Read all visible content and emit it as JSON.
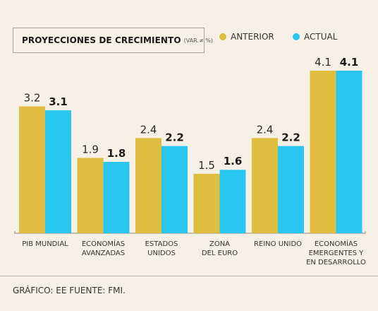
{
  "title": "PROYECCIONES DE CRECIMIENTO",
  "subtitle": "(VAR.≠ %)",
  "legend": {
    "prev": "ANTERIOR",
    "curr": "ACTUAL"
  },
  "source": "GRÁFICO: EE FUENTE: FMI.",
  "colors": {
    "anterior": "#dfbd3f",
    "actual": "#29c6f0",
    "background": "#f7f0e7"
  },
  "chart_data": {
    "type": "bar",
    "categories": [
      [
        "PIB MUNDIAL"
      ],
      [
        "ECONOMÍAS",
        "AVANZADAS"
      ],
      [
        "ESTADOS",
        "UNIDOS"
      ],
      [
        "ZONA",
        "DEL EURO"
      ],
      [
        "REINO UNIDO"
      ],
      [
        "ECONOMÍAS",
        "EMERGENTES Y",
        "EN DESARROLLO"
      ]
    ],
    "series": [
      {
        "name": "ANTERIOR",
        "values": [
          3.2,
          1.9,
          2.4,
          1.5,
          2.4,
          4.1
        ]
      },
      {
        "name": "ACTUAL",
        "values": [
          3.1,
          1.8,
          2.2,
          1.6,
          2.2,
          4.1
        ]
      }
    ],
    "value_labels": {
      "ANTERIOR": [
        "3.2",
        "1.9",
        "2.4",
        "1.5",
        "2.4",
        "4.1"
      ],
      "ACTUAL": [
        "3.1",
        "1.8",
        "2.2",
        "1.6",
        "2.2",
        "4.1"
      ]
    },
    "ylim": [
      0,
      4.1
    ],
    "grid": false,
    "legend_position": "top-right"
  }
}
